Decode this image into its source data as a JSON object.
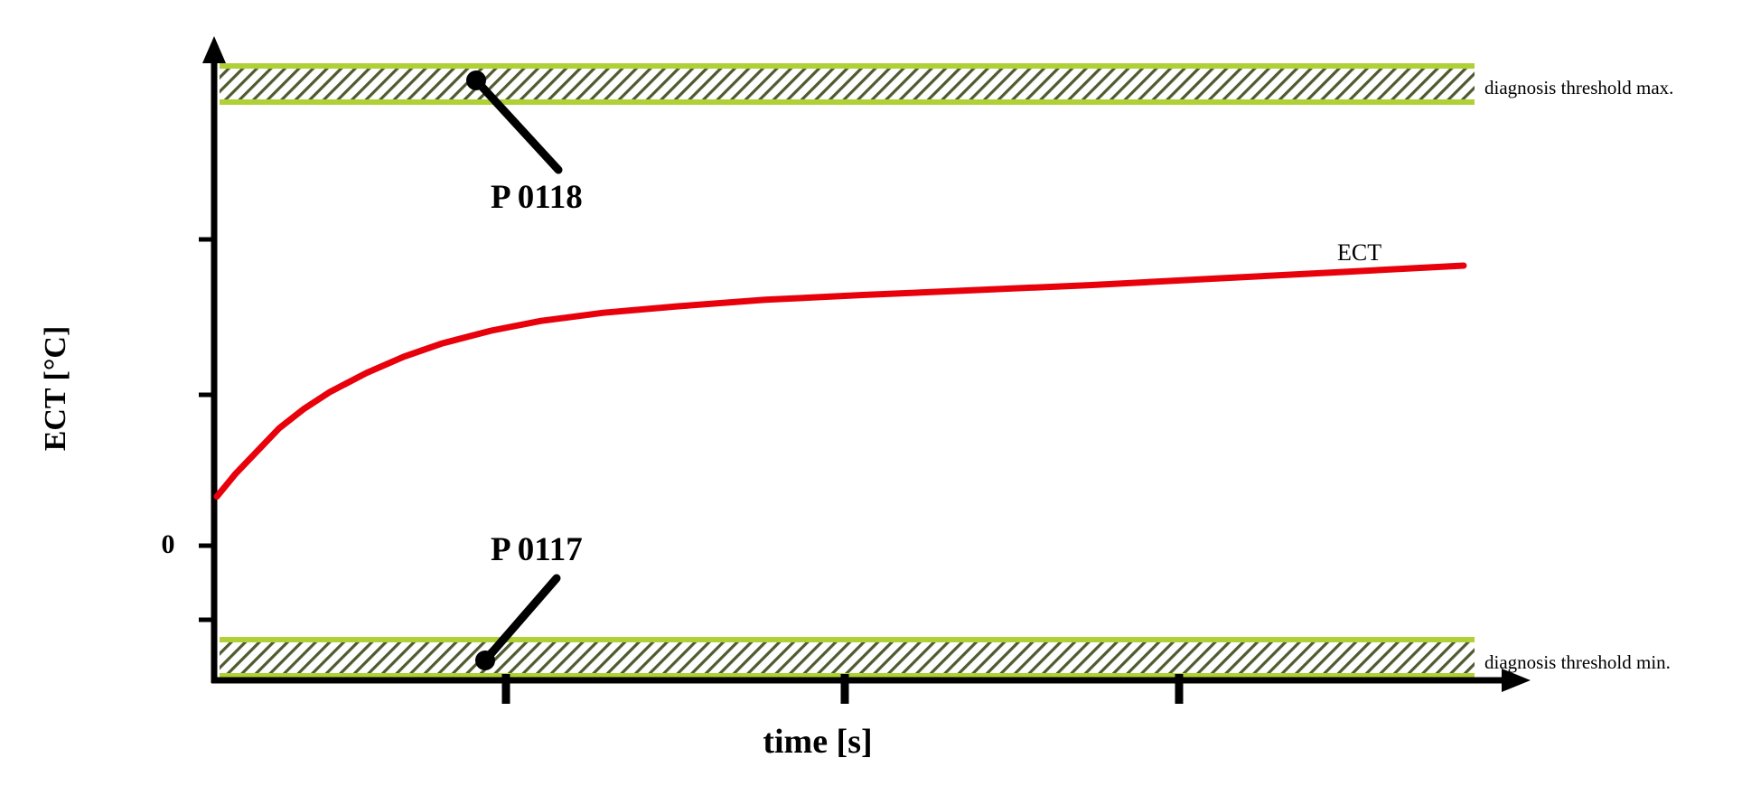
{
  "figure": {
    "y_axis_title": "ECT [°C]",
    "x_axis_title": "time [s]",
    "origin_label": "0",
    "curve_label": "ECT",
    "threshold_max_label": "diagnosis threshold max.",
    "threshold_min_label": "diagnosis threshold min.",
    "fault_code_high": "P 0118",
    "fault_code_low": "P 0117"
  },
  "colors": {
    "curve": "#e8000b",
    "band": "#afd135",
    "hatch": "#4e5a30",
    "axis": "#000000"
  },
  "chart_data": {
    "type": "line",
    "title": "",
    "xlabel": "time [s]",
    "ylabel": "ECT [°C]",
    "x_unit": "s",
    "y_unit": "°C",
    "x_range_est": [
      0,
      100
    ],
    "y_tick_labels": [
      "0"
    ],
    "x_ticks_labeled": false,
    "grid": false,
    "legend": false,
    "series": [
      {
        "name": "ECT",
        "color": "#e8000b",
        "x": [
          0,
          1.5,
          3,
          5,
          7,
          9,
          12,
          15,
          18,
          22,
          26,
          31,
          37,
          44,
          52,
          61,
          70,
          80,
          90,
          100
        ],
        "y": [
          14,
          21,
          27,
          35,
          41,
          46,
          52,
          57,
          61,
          65,
          68,
          70.5,
          72.5,
          74.5,
          76,
          77.5,
          79,
          81,
          83,
          85
        ]
      }
    ],
    "thresholds": [
      {
        "label": "diagnosis threshold max.",
        "fault_code": "P 0118",
        "y_est": 140
      },
      {
        "label": "diagnosis threshold min.",
        "fault_code": "P 0117",
        "y_est": -36
      }
    ],
    "annotations": [
      "P 0118",
      "P 0117",
      "ECT"
    ]
  }
}
